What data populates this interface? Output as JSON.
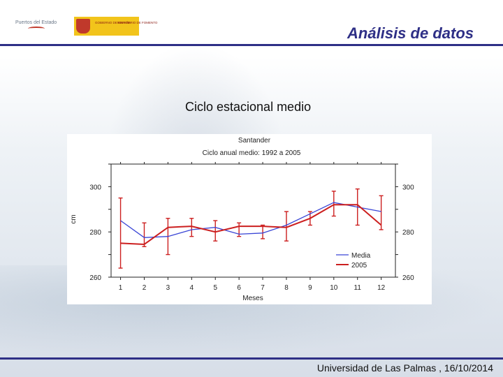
{
  "header": {
    "logo_left_text": "Puertos del Estado",
    "logo_right_text_1": "GOBIERNO DE ESPAÑA",
    "logo_right_text_2": "MINISTERIO DE FOMENTO",
    "title": "Análisis de datos"
  },
  "subtitle": "Ciclo estacional medio",
  "footer": "Universidad de Las Palmas , 16/10/2014",
  "colors": {
    "media": "#3a46d6",
    "y2005": "#cc1f1f",
    "accent": "#2e2f86"
  },
  "chart_data": {
    "type": "line",
    "title": "Santander",
    "subtitle": "Ciclo anual medio: 1992 a 2005",
    "xlabel": "Meses",
    "ylabel": "cm",
    "categories": [
      1,
      2,
      3,
      4,
      5,
      6,
      7,
      8,
      9,
      10,
      11,
      12
    ],
    "ylim": [
      260,
      310
    ],
    "yticks": [
      260,
      280,
      300
    ],
    "legend_position": "bottom-right",
    "grid": false,
    "series": [
      {
        "name": "Media",
        "values": [
          285,
          277.5,
          278,
          281,
          282,
          279,
          279.5,
          283,
          288,
          293,
          291,
          289
        ]
      },
      {
        "name": "2005",
        "values": [
          275,
          274.5,
          282,
          282.5,
          280,
          282.5,
          282.5,
          282,
          286,
          292,
          292,
          283
        ],
        "error_bars": [
          [
            264,
            295
          ],
          [
            273.5,
            284
          ],
          [
            270,
            286
          ],
          [
            278,
            286
          ],
          [
            276,
            285
          ],
          [
            278,
            284
          ],
          [
            277,
            283
          ],
          [
            276,
            289
          ],
          [
            283,
            289
          ],
          [
            287,
            298
          ],
          [
            283,
            299
          ],
          [
            281,
            296
          ]
        ]
      }
    ]
  }
}
